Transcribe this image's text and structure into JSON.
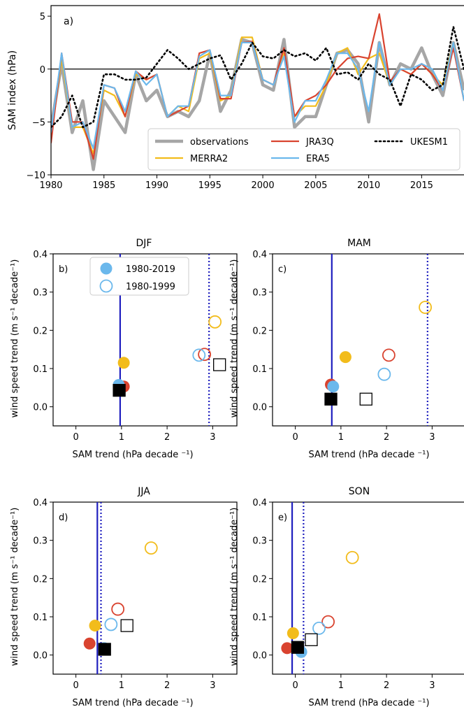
{
  "colors": {
    "observations": "#a6a6a6",
    "MERRA2": "#f2bc1b",
    "JRA3Q": "#d9432f",
    "ERA5": "#6bb8ec",
    "UKESM1": "#000000",
    "vline": "#1f1fbf"
  },
  "chart_data": [
    {
      "type": "line",
      "panel_label": "a)",
      "ylabel": "SAM index (hPa)",
      "xlim": [
        1980,
        2019
      ],
      "ylim": [
        -10,
        6
      ],
      "xticks": [
        1980,
        1985,
        1990,
        1995,
        2000,
        2005,
        2010,
        2015
      ],
      "yticks": [
        -10,
        -5,
        0,
        5
      ],
      "zero_line": true,
      "legend_position": "lower-right",
      "x": [
        1980,
        1981,
        1982,
        1983,
        1984,
        1985,
        1986,
        1987,
        1988,
        1989,
        1990,
        1991,
        1992,
        1993,
        1994,
        1995,
        1996,
        1997,
        1998,
        1999,
        2000,
        2001,
        2002,
        2003,
        2004,
        2005,
        2006,
        2007,
        2008,
        2009,
        2010,
        2011,
        2012,
        2013,
        2014,
        2015,
        2016,
        2017,
        2018,
        2019
      ],
      "series": [
        {
          "name": "observations",
          "key": "observations",
          "style": "solid-thick",
          "values": [
            -5.5,
            0.5,
            -6.0,
            -3.0,
            -9.5,
            -3.0,
            -4.5,
            -6.0,
            -0.5,
            -3.0,
            -2.0,
            -4.5,
            -4.0,
            -4.5,
            -3.0,
            1.5,
            -4.0,
            -2.0,
            2.8,
            2.5,
            -1.5,
            -2.0,
            2.8,
            -5.5,
            -4.5,
            -4.5,
            -1.5,
            1.5,
            1.8,
            0.5,
            -5.0,
            2.5,
            -1.5,
            0.5,
            0.0,
            2.0,
            -0.5,
            -2.5,
            2.5,
            -2.0
          ]
        },
        {
          "name": "MERRA2",
          "key": "MERRA2",
          "style": "solid",
          "values": [
            -6.5,
            1.0,
            -5.5,
            -5.5,
            -8.0,
            -2.0,
            -2.5,
            -4.5,
            -0.5,
            -1.0,
            -0.5,
            -4.5,
            -3.5,
            -4.0,
            1.0,
            1.5,
            -3.0,
            -2.5,
            3.0,
            3.0,
            -1.0,
            -1.5,
            1.5,
            -4.5,
            -3.5,
            -3.5,
            -1.5,
            1.5,
            2.0,
            -0.5,
            1.0,
            1.5,
            -1.5,
            0.0,
            -0.5,
            0.5,
            -0.5,
            -1.5,
            2.5,
            -3.0
          ]
        },
        {
          "name": "JRA3Q",
          "key": "JRA3Q",
          "style": "solid",
          "values": [
            -7.0,
            1.5,
            -5.0,
            -5.0,
            -8.5,
            -1.5,
            -1.8,
            -4.5,
            -0.2,
            -1.0,
            -0.5,
            -4.5,
            -4.0,
            -3.5,
            1.5,
            1.8,
            -2.8,
            -2.8,
            2.5,
            2.6,
            -1.0,
            -1.5,
            2.0,
            -4.5,
            -3.0,
            -2.5,
            -1.5,
            0.0,
            1.0,
            1.2,
            1.0,
            5.2,
            -1.2,
            0.0,
            -0.5,
            0.5,
            -0.5,
            -2.0,
            2.0,
            -3.0
          ]
        },
        {
          "name": "ERA5",
          "key": "ERA5",
          "style": "solid",
          "values": [
            -6.0,
            1.5,
            -5.5,
            -5.0,
            -7.5,
            -1.5,
            -1.8,
            -4.0,
            -0.2,
            -1.5,
            -0.5,
            -4.5,
            -3.5,
            -3.5,
            1.2,
            1.8,
            -2.5,
            -2.5,
            2.5,
            2.5,
            -1.0,
            -1.5,
            1.2,
            -5.0,
            -3.0,
            -3.0,
            -1.0,
            1.5,
            1.5,
            0.0,
            -4.0,
            2.5,
            -1.5,
            0.0,
            0.0,
            0.5,
            0.0,
            -2.0,
            2.5,
            -3.0
          ]
        },
        {
          "name": "UKESM1",
          "key": "UKESM1",
          "style": "dotted",
          "values": [
            -5.5,
            -4.5,
            -2.5,
            -5.5,
            -5.0,
            -0.5,
            -0.5,
            -1.0,
            -1.0,
            -0.8,
            0.5,
            1.8,
            1.0,
            0.0,
            0.5,
            1.0,
            1.3,
            -1.0,
            0.5,
            2.5,
            1.2,
            1.0,
            1.8,
            1.2,
            1.5,
            0.8,
            2.0,
            -0.5,
            -0.3,
            -1.0,
            0.5,
            -0.5,
            -1.0,
            -3.5,
            -0.5,
            -1.0,
            -2.0,
            -1.5,
            4.0,
            0.0
          ]
        }
      ]
    },
    {
      "type": "scatter",
      "panel_label": "b)",
      "title": "DJF",
      "xlabel": "SAM trend (hPa decade ⁻¹)",
      "ylabel": "wind speed trend (m s⁻¹ decade⁻¹)",
      "xlim": [
        -0.5,
        3.5
      ],
      "ylim": [
        -0.05,
        0.4
      ],
      "xticks": [
        0,
        1,
        2,
        3
      ],
      "yticks": [
        0.0,
        0.1,
        0.2,
        0.3,
        0.4
      ],
      "vlines": [
        {
          "x": 0.97,
          "style": "solid"
        },
        {
          "x": 2.92,
          "style": "dotted"
        }
      ],
      "legend": [
        {
          "label": "1980-2019",
          "marker": "filled-circle"
        },
        {
          "label": "1980-1999",
          "marker": "open-circle"
        }
      ],
      "legend_position": "upper-left",
      "points": [
        {
          "key": "observations",
          "period": "1980-2019",
          "x": 0.97,
          "y": 0.05
        },
        {
          "key": "MERRA2",
          "period": "1980-2019",
          "x": 1.05,
          "y": 0.115
        },
        {
          "key": "JRA3Q",
          "period": "1980-2019",
          "x": 1.05,
          "y": 0.053
        },
        {
          "key": "ERA5",
          "period": "1980-2019",
          "x": 0.94,
          "y": 0.057
        },
        {
          "key": "UKESM1",
          "period": "1980-2019",
          "x": 0.95,
          "y": 0.043
        },
        {
          "key": "MERRA2",
          "period": "1980-1999",
          "x": 3.05,
          "y": 0.222
        },
        {
          "key": "JRA3Q",
          "period": "1980-1999",
          "x": 2.82,
          "y": 0.137
        },
        {
          "key": "ERA5",
          "period": "1980-1999",
          "x": 2.7,
          "y": 0.135
        },
        {
          "key": "UKESM1",
          "period": "1980-1999",
          "x": 3.15,
          "y": 0.11
        }
      ]
    },
    {
      "type": "scatter",
      "panel_label": "c)",
      "title": "MAM",
      "xlabel": "SAM trend (hPa decade ⁻¹)",
      "ylabel": "wind speed trend (m s⁻¹ decade⁻¹)",
      "xlim": [
        -0.5,
        3.5
      ],
      "ylim": [
        -0.05,
        0.4
      ],
      "xticks": [
        0,
        1,
        2,
        3
      ],
      "yticks": [
        0.0,
        0.1,
        0.2,
        0.3,
        0.4
      ],
      "vlines": [
        {
          "x": 0.8,
          "style": "solid"
        },
        {
          "x": 2.9,
          "style": "dotted"
        }
      ],
      "points": [
        {
          "key": "observations",
          "period": "1980-2019",
          "x": 0.8,
          "y": 0.035
        },
        {
          "key": "MERRA2",
          "period": "1980-2019",
          "x": 1.1,
          "y": 0.13
        },
        {
          "key": "JRA3Q",
          "period": "1980-2019",
          "x": 0.78,
          "y": 0.058
        },
        {
          "key": "ERA5",
          "period": "1980-2019",
          "x": 0.83,
          "y": 0.053
        },
        {
          "key": "UKESM1",
          "period": "1980-2019",
          "x": 0.78,
          "y": 0.02
        },
        {
          "key": "MERRA2",
          "period": "1980-1999",
          "x": 2.85,
          "y": 0.26
        },
        {
          "key": "JRA3Q",
          "period": "1980-1999",
          "x": 2.05,
          "y": 0.135
        },
        {
          "key": "ERA5",
          "period": "1980-1999",
          "x": 1.95,
          "y": 0.085
        },
        {
          "key": "UKESM1",
          "period": "1980-1999",
          "x": 1.55,
          "y": 0.02
        }
      ]
    },
    {
      "type": "scatter",
      "panel_label": "d)",
      "title": "JJA",
      "xlabel": "SAM trend (hPa decade ⁻¹)",
      "ylabel": "wind speed trend (m s⁻¹ decade⁻¹)",
      "xlim": [
        -0.5,
        3.5
      ],
      "ylim": [
        -0.05,
        0.4
      ],
      "xticks": [
        0,
        1,
        2,
        3
      ],
      "yticks": [
        0.0,
        0.1,
        0.2,
        0.3,
        0.4
      ],
      "vlines": [
        {
          "x": 0.47,
          "style": "solid"
        },
        {
          "x": 0.55,
          "style": "dotted"
        }
      ],
      "points": [
        {
          "key": "observations",
          "period": "1980-2019",
          "x": 0.6,
          "y": 0.02
        },
        {
          "key": "MERRA2",
          "period": "1980-2019",
          "x": 0.42,
          "y": 0.077
        },
        {
          "key": "JRA3Q",
          "period": "1980-2019",
          "x": 0.3,
          "y": 0.03
        },
        {
          "key": "ERA5",
          "period": "1980-2019",
          "x": 0.62,
          "y": 0.018
        },
        {
          "key": "UKESM1",
          "period": "1980-2019",
          "x": 0.63,
          "y": 0.015
        },
        {
          "key": "MERRA2",
          "period": "1980-1999",
          "x": 1.65,
          "y": 0.28
        },
        {
          "key": "JRA3Q",
          "period": "1980-1999",
          "x": 0.92,
          "y": 0.12
        },
        {
          "key": "ERA5",
          "period": "1980-1999",
          "x": 0.77,
          "y": 0.08
        },
        {
          "key": "UKESM1",
          "period": "1980-1999",
          "x": 1.12,
          "y": 0.077
        }
      ]
    },
    {
      "type": "scatter",
      "panel_label": "e)",
      "title": "SON",
      "xlabel": "SAM trend (hPa decade ⁻¹)",
      "ylabel": "wind speed trend (m s⁻¹ decade⁻¹)",
      "xlim": [
        -0.5,
        3.5
      ],
      "ylim": [
        -0.05,
        0.4
      ],
      "xticks": [
        0,
        1,
        2,
        3
      ],
      "yticks": [
        0.0,
        0.1,
        0.2,
        0.3,
        0.4
      ],
      "vlines": [
        {
          "x": -0.07,
          "style": "solid"
        },
        {
          "x": 0.18,
          "style": "dotted"
        }
      ],
      "points": [
        {
          "key": "observations",
          "period": "1980-2019",
          "x": 0.1,
          "y": 0.01
        },
        {
          "key": "MERRA2",
          "period": "1980-2019",
          "x": -0.05,
          "y": 0.057
        },
        {
          "key": "JRA3Q",
          "period": "1980-2019",
          "x": -0.18,
          "y": 0.018
        },
        {
          "key": "ERA5",
          "period": "1980-2019",
          "x": 0.13,
          "y": 0.008
        },
        {
          "key": "UKESM1",
          "period": "1980-2019",
          "x": 0.05,
          "y": 0.02
        },
        {
          "key": "MERRA2",
          "period": "1980-1999",
          "x": 1.25,
          "y": 0.255
        },
        {
          "key": "JRA3Q",
          "period": "1980-1999",
          "x": 0.72,
          "y": 0.087
        },
        {
          "key": "ERA5",
          "period": "1980-1999",
          "x": 0.52,
          "y": 0.07
        },
        {
          "key": "UKESM1",
          "period": "1980-1999",
          "x": 0.35,
          "y": 0.04
        }
      ]
    }
  ]
}
